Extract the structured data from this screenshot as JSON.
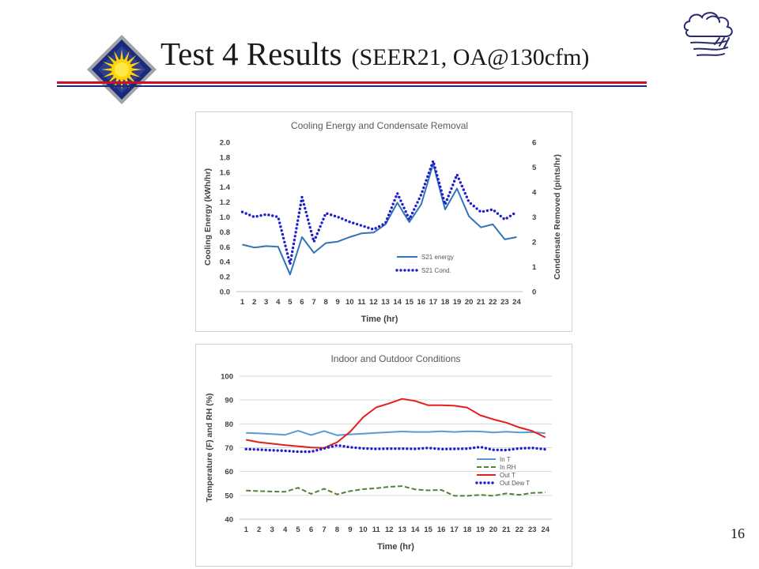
{
  "slide": {
    "title_main": "Test 4 Results",
    "title_sub": "(SEER21, OA@130cfm)",
    "page_number": "16"
  },
  "icons": {
    "logo": "sun-diamond-logo-icon",
    "weather": "cloud-wind-icon"
  },
  "chart_data": [
    {
      "type": "line",
      "title": "Cooling Energy and Condensate Removal",
      "xlabel": "Time (hr)",
      "ylabel": "Cooling Energy (kWh/hr)",
      "y2label": "Condensate Removed (pints/hr)",
      "x": [
        1,
        2,
        3,
        4,
        5,
        6,
        7,
        8,
        9,
        10,
        11,
        12,
        13,
        14,
        15,
        16,
        17,
        18,
        19,
        20,
        21,
        22,
        23,
        24
      ],
      "ylim": [
        0,
        2.0
      ],
      "yticks": [
        "0.0",
        "0.2",
        "0.4",
        "0.6",
        "0.8",
        "1.0",
        "1.2",
        "1.4",
        "1.6",
        "1.8",
        "2.0"
      ],
      "y2lim": [
        0,
        6
      ],
      "y2ticks": [
        "0",
        "1",
        "2",
        "3",
        "4",
        "5",
        "6"
      ],
      "grid": false,
      "legend_position": "lower-right",
      "series": [
        {
          "name": "S21 energy",
          "axis": "left",
          "style": "solid",
          "color": "#2e75b6",
          "values": [
            0.63,
            0.59,
            0.61,
            0.6,
            0.23,
            0.73,
            0.52,
            0.65,
            0.67,
            0.73,
            0.78,
            0.79,
            0.9,
            1.19,
            0.93,
            1.17,
            1.71,
            1.1,
            1.38,
            1.01,
            0.86,
            0.9,
            0.7,
            0.73
          ]
        },
        {
          "name": "S21 Cond.",
          "axis": "right",
          "style": "dotted",
          "color": "#1f1fd0",
          "values": [
            3.2,
            3.0,
            3.1,
            3.0,
            1.1,
            3.8,
            2.0,
            3.15,
            3.0,
            2.8,
            2.65,
            2.5,
            2.75,
            3.95,
            2.9,
            3.9,
            5.25,
            3.5,
            4.7,
            3.6,
            3.2,
            3.3,
            2.9,
            3.2
          ]
        }
      ]
    },
    {
      "type": "line",
      "title": "Indoor and Outdoor Conditions",
      "xlabel": "Time (hr)",
      "ylabel": "Temperature (F) and RH (%)",
      "x": [
        1,
        2,
        3,
        4,
        5,
        6,
        7,
        8,
        9,
        10,
        11,
        12,
        13,
        14,
        15,
        16,
        17,
        18,
        19,
        20,
        21,
        22,
        23,
        24
      ],
      "ylim": [
        40,
        100
      ],
      "yticks": [
        "40",
        "50",
        "60",
        "70",
        "80",
        "90",
        "100"
      ],
      "grid": true,
      "legend_position": "lower-right",
      "series": [
        {
          "name": "In T",
          "style": "solid",
          "color": "#5b9bd5",
          "values": [
            76.2,
            76.0,
            75.7,
            75.4,
            77.1,
            75.3,
            77.0,
            75.2,
            75.6,
            75.9,
            76.2,
            76.5,
            76.8,
            76.6,
            76.6,
            76.9,
            76.6,
            76.9,
            76.8,
            76.4,
            76.7,
            76.4,
            76.5,
            76.1
          ]
        },
        {
          "name": "In RH",
          "style": "dashed",
          "color": "#548235",
          "values": [
            52.0,
            51.8,
            51.6,
            51.5,
            53.2,
            50.6,
            52.8,
            50.4,
            51.8,
            52.6,
            53.0,
            53.6,
            53.9,
            52.5,
            52.1,
            52.3,
            49.8,
            49.8,
            50.2,
            49.8,
            50.8,
            50.2,
            51.0,
            51.2
          ]
        },
        {
          "name": "Out T",
          "style": "solid",
          "color": "#e3201b",
          "values": [
            73.3,
            72.3,
            71.7,
            71.1,
            70.6,
            70.1,
            69.9,
            72.3,
            76.7,
            82.8,
            86.9,
            88.6,
            90.5,
            89.6,
            87.8,
            87.8,
            87.6,
            86.8,
            83.6,
            81.9,
            80.5,
            78.5,
            77.0,
            74.3
          ]
        },
        {
          "name": "Out Dew T",
          "style": "dotted",
          "color": "#1f1fd0",
          "values": [
            69.4,
            69.2,
            68.9,
            68.7,
            68.3,
            68.3,
            69.7,
            71.0,
            70.2,
            69.7,
            69.5,
            69.6,
            69.6,
            69.5,
            69.9,
            69.4,
            69.5,
            69.6,
            70.3,
            69.1,
            69.0,
            69.7,
            69.9,
            69.3
          ]
        }
      ]
    }
  ]
}
